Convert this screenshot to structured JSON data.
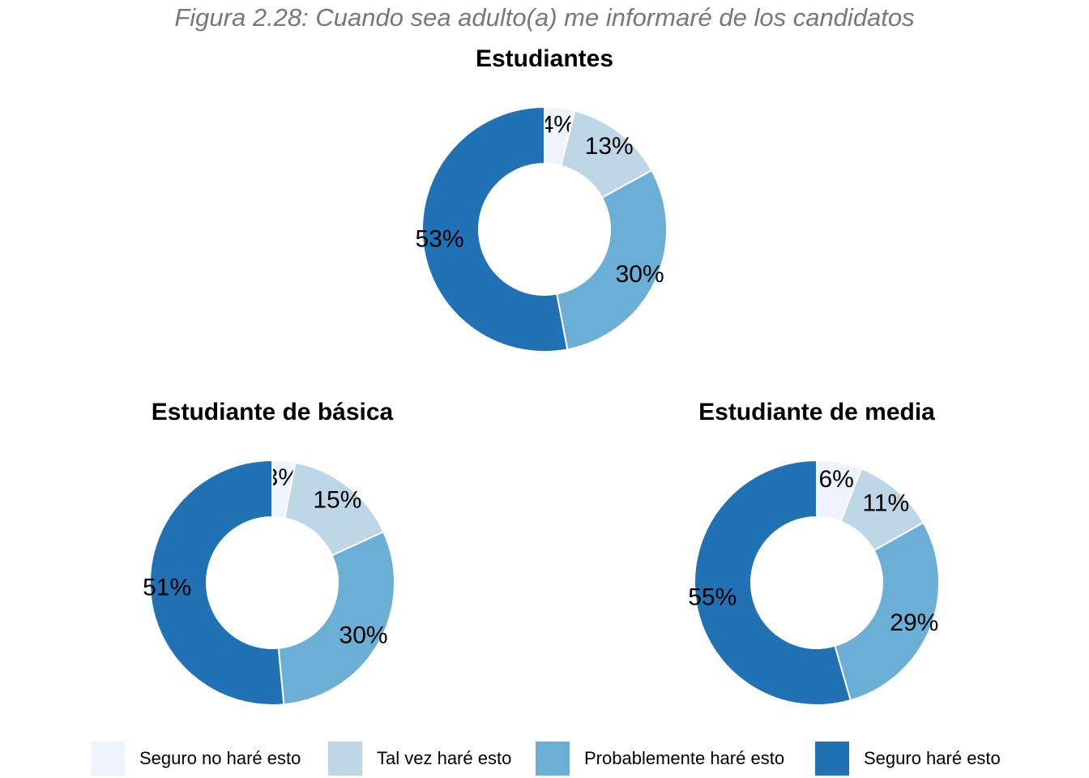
{
  "figure_title": "Figura 2.28:  Cuando sea adulto(a) me informaré de los candidatos",
  "legend": [
    {
      "label": "Seguro no haré esto",
      "color": "#eff3ff"
    },
    {
      "label": "Tal vez haré esto",
      "color": "#bdd7e7"
    },
    {
      "label": "Probablemente haré esto",
      "color": "#6baed6"
    },
    {
      "label": "Seguro haré esto",
      "color": "#2171b5"
    }
  ],
  "chart_data": [
    {
      "type": "pie",
      "title": "Estudiantes",
      "categories": [
        "Seguro no haré esto",
        "Tal vez haré esto",
        "Probablemente haré esto",
        "Seguro haré esto"
      ],
      "values": [
        4,
        13,
        30,
        53
      ],
      "labels": [
        "4%",
        "13%",
        "30%",
        "53%"
      ]
    },
    {
      "type": "pie",
      "title": "Estudiante de básica",
      "categories": [
        "Seguro no haré esto",
        "Tal vez haré esto",
        "Probablemente haré esto",
        "Seguro haré esto"
      ],
      "values": [
        3,
        15,
        30,
        51
      ],
      "labels": [
        "3%",
        "15%",
        "30%",
        "51%"
      ]
    },
    {
      "type": "pie",
      "title": "Estudiante de media",
      "categories": [
        "Seguro no haré esto",
        "Tal vez haré esto",
        "Probablemente haré esto",
        "Seguro haré esto"
      ],
      "values": [
        6,
        11,
        29,
        55
      ],
      "labels": [
        "6%",
        "11%",
        "29%",
        "55%"
      ]
    }
  ]
}
